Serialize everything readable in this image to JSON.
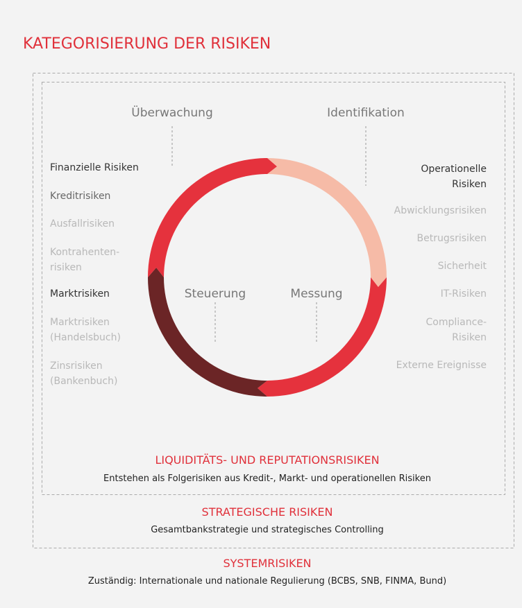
{
  "title": "KATEGORISIERUNG DER RISIKEN",
  "cycle": [
    "Überwachung",
    "Identifikation",
    "Steuerung",
    "Messung"
  ],
  "left_list": [
    {
      "lines": [
        "Finanzielle Risiken"
      ]
    },
    {
      "lines": [
        "Kreditrisiken"
      ]
    },
    {
      "lines": [
        "Ausfallrisiken"
      ]
    },
    {
      "lines": [
        "Kontrahenten-",
        "risiken"
      ]
    },
    {
      "lines": [
        "Marktrisiken"
      ]
    },
    {
      "lines": [
        "Marktrisiken",
        "(Handelsbuch)"
      ]
    },
    {
      "lines": [
        "Zinsrisiken",
        "(Bankenbuch)"
      ]
    }
  ],
  "right_list": [
    {
      "lines": [
        "Operationelle",
        "Risiken"
      ]
    },
    {
      "lines": [
        "Abwicklungsrisiken"
      ]
    },
    {
      "lines": [
        "Betrugsrisiken"
      ]
    },
    {
      "lines": [
        "Sicherheit"
      ]
    },
    {
      "lines": [
        "IT-Risiken"
      ]
    },
    {
      "lines": [
        "Compliance-",
        "Risiken"
      ]
    },
    {
      "lines": [
        "Externe Ereignisse"
      ]
    }
  ],
  "sections": [
    {
      "heading": "LIQUIDITÄTS- UND REPUTATIONSRISIKEN",
      "text": "Entstehen als Folgerisiken aus Kredit-, Markt- und operationellen Risiken"
    },
    {
      "heading": "STRATEGISCHE RISIKEN",
      "text": "Gesamtbankstrategie und strategisches Controlling"
    },
    {
      "heading": "SYSTEMRISIKEN",
      "text": "Zuständig: Internationale und nationale Regulierung (BCBS, SNB, FINMA, Bund)"
    }
  ]
}
